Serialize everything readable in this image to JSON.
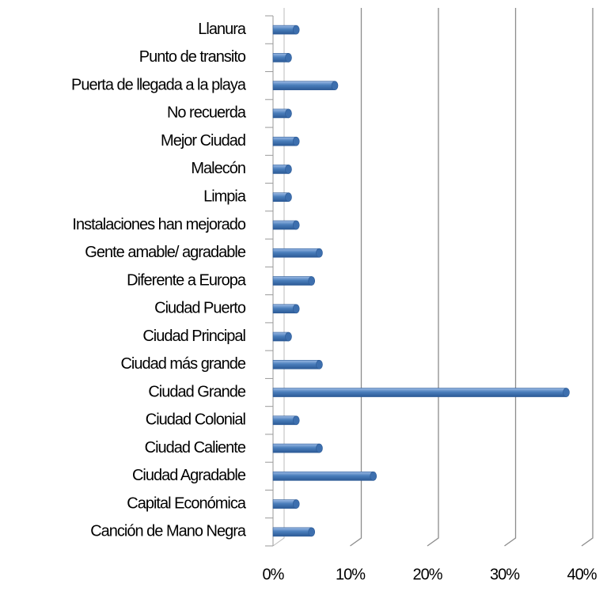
{
  "chart_data": {
    "type": "bar",
    "orientation": "horizontal",
    "categories": [
      "Llanura",
      "Punto de transito",
      "Puerta de llegada a la playa",
      "No recuerda",
      "Mejor Ciudad",
      "Malecón",
      "Limpia",
      "Instalaciones han mejorado",
      "Gente amable/ agradable",
      "Diferente a Europa",
      "Ciudad Puerto",
      "Ciudad Principal",
      "Ciudad más grande",
      "Ciudad Grande",
      "Ciudad Colonial",
      "Ciudad Caliente",
      "Ciudad Agradable",
      "Capital Económica",
      "Canción de Mano Negra"
    ],
    "values": [
      3,
      2,
      8,
      2,
      3,
      2,
      2,
      3,
      6,
      5,
      3,
      2,
      6,
      38,
      3,
      6,
      13,
      3,
      5
    ],
    "color": "#4a7ebb",
    "xlim": [
      0,
      40
    ],
    "xticks": [
      {
        "value": 0,
        "label": "0%"
      },
      {
        "value": 10,
        "label": "10%"
      },
      {
        "value": 20,
        "label": "20%"
      },
      {
        "value": 30,
        "label": "30%"
      },
      {
        "value": 40,
        "label": "40%"
      }
    ],
    "grid": true
  }
}
